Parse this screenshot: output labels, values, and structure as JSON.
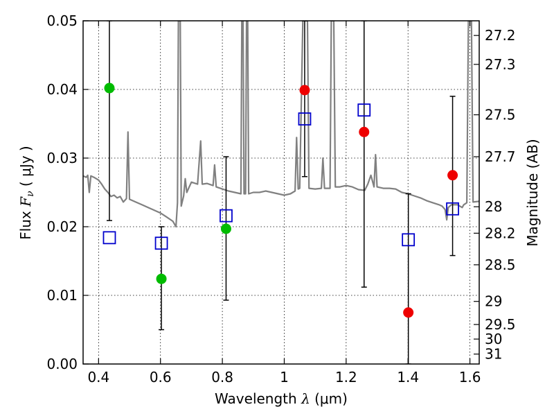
{
  "chart_data": {
    "type": "scatter",
    "title": "",
    "xlabel": {
      "prefix": "Wavelength",
      "symbol": "λ",
      "unit_open": "(",
      "unit": "μm",
      "unit_close": ")"
    },
    "ylabel": {
      "prefix": "Flux",
      "symbol": "F",
      "subscript": "ν",
      "unit_open": "(",
      "unit": "μJy",
      "unit_close": ")"
    },
    "y2label": "Magnitude (AB)",
    "xlim": [
      0.35,
      1.63
    ],
    "ylim": [
      0.0,
      0.05
    ],
    "x_ticks": [
      {
        "value": 0.4,
        "label": "0.4"
      },
      {
        "value": 0.6,
        "label": "0.6"
      },
      {
        "value": 0.8,
        "label": "0.8"
      },
      {
        "value": 1.0,
        "label": "1"
      },
      {
        "value": 1.2,
        "label": "1.2"
      },
      {
        "value": 1.4,
        "label": "1.4"
      },
      {
        "value": 1.6,
        "label": "1.6"
      }
    ],
    "y_ticks": [
      {
        "value": 0.0,
        "label": "0.00"
      },
      {
        "value": 0.01,
        "label": "0.01"
      },
      {
        "value": 0.02,
        "label": "0.02"
      },
      {
        "value": 0.03,
        "label": "0.03"
      },
      {
        "value": 0.04,
        "label": "0.04"
      },
      {
        "value": 0.05,
        "label": "0.05"
      }
    ],
    "y2_ticks": [
      {
        "mag": 27.2,
        "label": "27.2"
      },
      {
        "mag": 27.3,
        "label": "27.3"
      },
      {
        "mag": 27.5,
        "label": "27.5"
      },
      {
        "mag": 27.7,
        "label": "27.7"
      },
      {
        "mag": 28.0,
        "label": "28"
      },
      {
        "mag": 28.2,
        "label": "28.2"
      },
      {
        "mag": 28.5,
        "label": "28.5"
      },
      {
        "mag": 29.0,
        "label": "29"
      },
      {
        "mag": 29.5,
        "label": "29.5"
      },
      {
        "mag": 30.0,
        "label": "30"
      },
      {
        "mag": 31.0,
        "label": "31"
      }
    ],
    "grid": true,
    "series": [
      {
        "kind": "line",
        "color": "#808080",
        "points": [
          [
            0.35,
            0.0274
          ],
          [
            0.36,
            0.0272
          ],
          [
            0.365,
            0.0275
          ],
          [
            0.37,
            0.025
          ],
          [
            0.375,
            0.0274
          ],
          [
            0.385,
            0.0272
          ],
          [
            0.4,
            0.0268
          ],
          [
            0.41,
            0.0262
          ],
          [
            0.42,
            0.0255
          ],
          [
            0.43,
            0.025
          ],
          [
            0.44,
            0.0244
          ],
          [
            0.45,
            0.0246
          ],
          [
            0.46,
            0.0242
          ],
          [
            0.47,
            0.0244
          ],
          [
            0.48,
            0.0236
          ],
          [
            0.49,
            0.0241
          ],
          [
            0.495,
            0.0338
          ],
          [
            0.5,
            0.024
          ],
          [
            0.52,
            0.0236
          ],
          [
            0.54,
            0.0232
          ],
          [
            0.56,
            0.0228
          ],
          [
            0.58,
            0.0224
          ],
          [
            0.6,
            0.022
          ],
          [
            0.62,
            0.0214
          ],
          [
            0.64,
            0.0208
          ],
          [
            0.65,
            0.02
          ],
          [
            0.655,
            0.0235
          ],
          [
            0.658,
            0.05
          ],
          [
            0.664,
            0.05
          ],
          [
            0.667,
            0.023
          ],
          [
            0.675,
            0.0245
          ],
          [
            0.68,
            0.027
          ],
          [
            0.685,
            0.025
          ],
          [
            0.7,
            0.0265
          ],
          [
            0.72,
            0.0262
          ],
          [
            0.73,
            0.0325
          ],
          [
            0.735,
            0.0262
          ],
          [
            0.75,
            0.0263
          ],
          [
            0.77,
            0.026
          ],
          [
            0.775,
            0.029
          ],
          [
            0.78,
            0.0258
          ],
          [
            0.8,
            0.0255
          ],
          [
            0.82,
            0.0252
          ],
          [
            0.84,
            0.025
          ],
          [
            0.86,
            0.0248
          ],
          [
            0.863,
            0.05
          ],
          [
            0.867,
            0.05
          ],
          [
            0.87,
            0.0248
          ],
          [
            0.875,
            0.0248
          ],
          [
            0.878,
            0.05
          ],
          [
            0.882,
            0.05
          ],
          [
            0.885,
            0.0248
          ],
          [
            0.9,
            0.025
          ],
          [
            0.92,
            0.025
          ],
          [
            0.94,
            0.0252
          ],
          [
            0.96,
            0.025
          ],
          [
            0.98,
            0.0248
          ],
          [
            1.0,
            0.0246
          ],
          [
            1.02,
            0.0248
          ],
          [
            1.035,
            0.0252
          ],
          [
            1.04,
            0.033
          ],
          [
            1.045,
            0.0255
          ],
          [
            1.05,
            0.0256
          ],
          [
            1.06,
            0.05
          ],
          [
            1.075,
            0.05
          ],
          [
            1.08,
            0.0256
          ],
          [
            1.1,
            0.0255
          ],
          [
            1.12,
            0.0256
          ],
          [
            1.125,
            0.03
          ],
          [
            1.13,
            0.0256
          ],
          [
            1.148,
            0.0256
          ],
          [
            1.152,
            0.05
          ],
          [
            1.16,
            0.05
          ],
          [
            1.165,
            0.0258
          ],
          [
            1.18,
            0.0258
          ],
          [
            1.2,
            0.026
          ],
          [
            1.22,
            0.0258
          ],
          [
            1.24,
            0.0254
          ],
          [
            1.26,
            0.0253
          ],
          [
            1.27,
            0.0262
          ],
          [
            1.28,
            0.0275
          ],
          [
            1.29,
            0.0258
          ],
          [
            1.295,
            0.0305
          ],
          [
            1.3,
            0.0258
          ],
          [
            1.32,
            0.0256
          ],
          [
            1.34,
            0.0256
          ],
          [
            1.36,
            0.0255
          ],
          [
            1.38,
            0.025
          ],
          [
            1.4,
            0.0248
          ],
          [
            1.42,
            0.0245
          ],
          [
            1.44,
            0.0242
          ],
          [
            1.46,
            0.0238
          ],
          [
            1.48,
            0.0235
          ],
          [
            1.5,
            0.0232
          ],
          [
            1.51,
            0.023
          ],
          [
            1.52,
            0.0225
          ],
          [
            1.525,
            0.021
          ],
          [
            1.53,
            0.0228
          ],
          [
            1.54,
            0.0232
          ],
          [
            1.56,
            0.0232
          ],
          [
            1.575,
            0.0228
          ],
          [
            1.58,
            0.0232
          ],
          [
            1.59,
            0.0235
          ],
          [
            1.595,
            0.05
          ],
          [
            1.605,
            0.05
          ],
          [
            1.61,
            0.0236
          ],
          [
            1.63,
            0.0237
          ]
        ]
      },
      {
        "kind": "scatter",
        "marker": "circle",
        "color": "#00bb00",
        "points": [
          {
            "x": 0.435,
            "y": 0.0402,
            "yerr_low": 0.0209,
            "yerr_high": 0.05
          },
          {
            "x": 0.603,
            "y": 0.0124,
            "yerr_low": 0.005,
            "yerr_high": 0.02
          },
          {
            "x": 0.812,
            "y": 0.0197,
            "yerr_low": 0.0093,
            "yerr_high": 0.0302
          }
        ]
      },
      {
        "kind": "scatter",
        "marker": "circle",
        "color": "#ee0000",
        "points": [
          {
            "x": 1.066,
            "y": 0.0399,
            "yerr_low": 0.0273,
            "yerr_high": 0.05
          },
          {
            "x": 1.258,
            "y": 0.0338,
            "yerr_low": 0.0112,
            "yerr_high": 0.05
          },
          {
            "x": 1.401,
            "y": 0.0075,
            "yerr_low": 0.0,
            "yerr_high": 0.0248
          },
          {
            "x": 1.544,
            "y": 0.0275,
            "yerr_low": 0.0158,
            "yerr_high": 0.039
          }
        ]
      },
      {
        "kind": "scatter",
        "marker": "open-square",
        "color": "#0000cc",
        "points": [
          {
            "x": 0.435,
            "y": 0.0184
          },
          {
            "x": 0.603,
            "y": 0.0176
          },
          {
            "x": 0.812,
            "y": 0.0216
          },
          {
            "x": 1.066,
            "y": 0.0357
          },
          {
            "x": 1.258,
            "y": 0.037
          },
          {
            "x": 1.401,
            "y": 0.0181
          },
          {
            "x": 1.544,
            "y": 0.0226
          }
        ]
      }
    ]
  }
}
